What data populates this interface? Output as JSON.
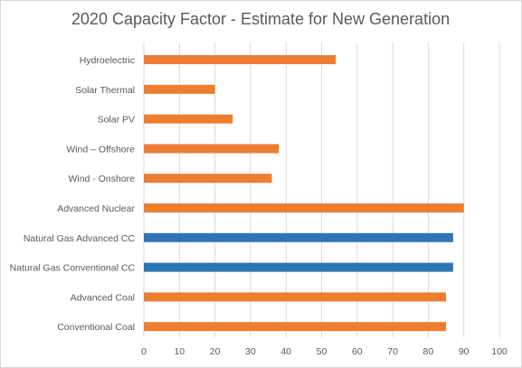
{
  "chart_data": {
    "type": "bar",
    "orientation": "horizontal",
    "title": "2020 Capacity Factor - Estimate for New Generation",
    "categories": [
      "Hydroelectric",
      "Solar Thermal",
      "Solar PV",
      "Wind – Offshore",
      "Wind - Onshore",
      "Advanced Nuclear",
      "Natural Gas Advanced CC",
      "Natural Gas Conventional CC",
      "Advanced Coal",
      "Conventional Coal"
    ],
    "values": [
      54,
      20,
      25,
      38,
      36,
      90,
      87,
      87,
      85,
      85
    ],
    "bar_colors": [
      "#ed7d31",
      "#ed7d31",
      "#ed7d31",
      "#ed7d31",
      "#ed7d31",
      "#ed7d31",
      "#2e75b6",
      "#2e75b6",
      "#ed7d31",
      "#ed7d31"
    ],
    "xlim": [
      0,
      100
    ],
    "xticks": [
      "0",
      "10",
      "20",
      "30",
      "40",
      "50",
      "60",
      "70",
      "80",
      "90",
      "100"
    ],
    "grid": "vertical",
    "legend": "none",
    "gridline_color": "#d9d9d9"
  }
}
